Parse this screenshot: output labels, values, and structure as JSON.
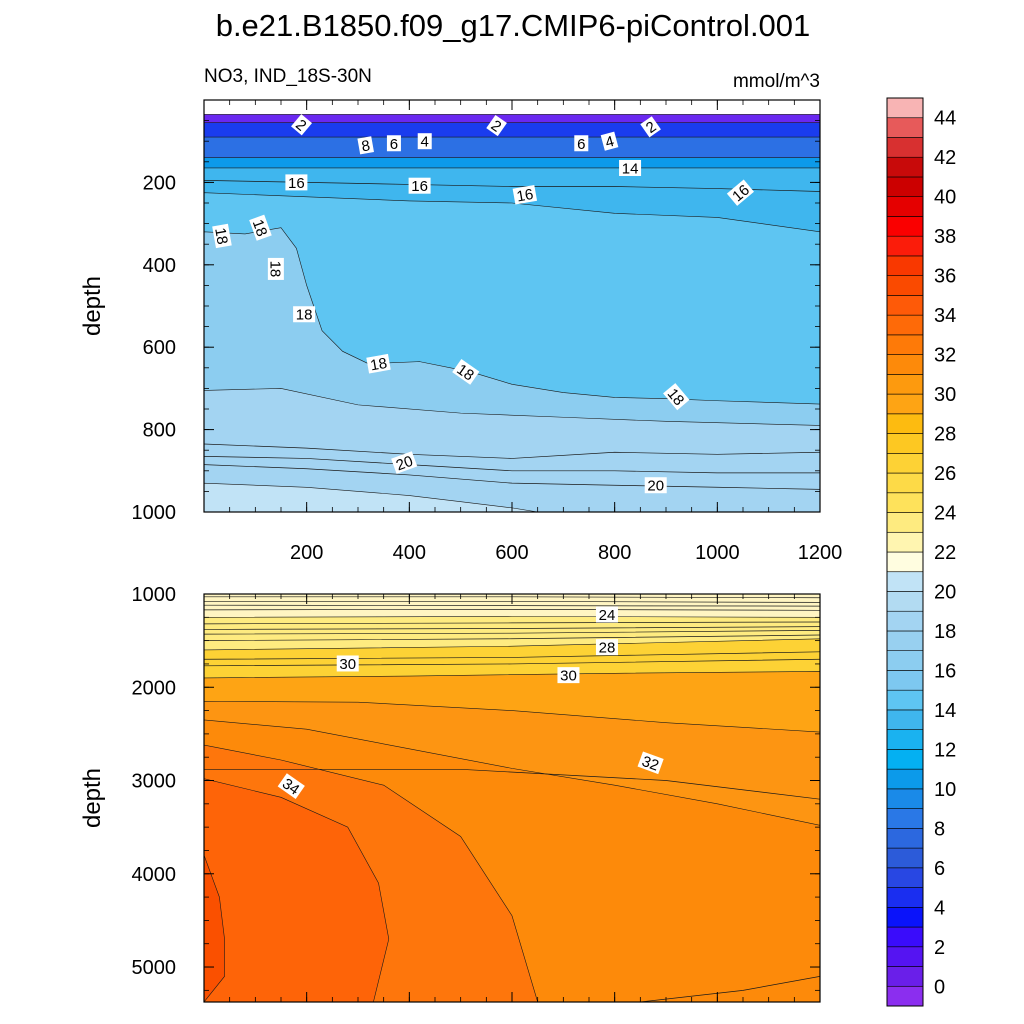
{
  "chart_data": {
    "type": "contour",
    "title": "b.e21.B1850.f09_g17.CMIP6-piControl.001",
    "subtitle_left": "NO3, IND_18S-30N",
    "subtitle_right": "mmol/m^3",
    "xlabel": "",
    "xlim": [
      0,
      1200
    ],
    "x_ticks": [
      200,
      400,
      600,
      800,
      1000,
      1200
    ],
    "panels": [
      {
        "name": "upper",
        "ylabel": "depth",
        "ylim": [
          0,
          1000
        ],
        "y_ticks": [
          200,
          400,
          600,
          800,
          1000
        ],
        "bands": [
          {
            "level": 0,
            "color": "#6a28f0",
            "top": [
              [
                0,
                35
              ],
              [
                1200,
                35
              ]
            ]
          },
          {
            "level": 4,
            "color": "#1a3cee",
            "top": [
              [
                0,
                55
              ],
              [
                1200,
                55
              ]
            ]
          },
          {
            "level": 8,
            "color": "#2c70e4",
            "top": [
              [
                0,
                90
              ],
              [
                1200,
                90
              ]
            ]
          },
          {
            "level": 12,
            "color": "#0c9aea",
            "top": [
              [
                0,
                140
              ],
              [
                1200,
                140
              ]
            ]
          },
          {
            "level": 16,
            "color": "#3fb6ee",
            "top": [
              [
                0,
                165
              ],
              [
                1200,
                165
              ]
            ]
          },
          {
            "level": 17,
            "color": "#5ec5f2",
            "top": [
              [
                0,
                225
              ],
              [
                200,
                235
              ],
              [
                400,
                245
              ],
              [
                600,
                250
              ],
              [
                800,
                275
              ],
              [
                1000,
                285
              ],
              [
                1200,
                320
              ]
            ]
          },
          {
            "level": 18,
            "color": "#8ccdf0",
            "top": [
              [
                0,
                320
              ],
              [
                80,
                325
              ],
              [
                150,
                310
              ],
              [
                180,
                360
              ],
              [
                200,
                450
              ],
              [
                230,
                560
              ],
              [
                270,
                610
              ],
              [
                320,
                640
              ],
              [
                420,
                635
              ],
              [
                520,
                660
              ],
              [
                600,
                690
              ],
              [
                700,
                710
              ],
              [
                800,
                722
              ],
              [
                900,
                725
              ],
              [
                1000,
                730
              ],
              [
                1200,
                738
              ]
            ]
          },
          {
            "level": 19,
            "color": "#a3d4f2",
            "top": [
              [
                0,
                705
              ],
              [
                150,
                700
              ],
              [
                300,
                740
              ],
              [
                500,
                760
              ],
              [
                700,
                770
              ],
              [
                900,
                780
              ],
              [
                1200,
                790
              ]
            ]
          },
          {
            "level": 20,
            "color": "#c1e3f6",
            "top": [
              [
                0,
                930
              ],
              [
                200,
                940
              ],
              [
                400,
                960
              ],
              [
                500,
                975
              ],
              [
                600,
                990
              ],
              [
                650,
                1000
              ],
              [
                1200,
                1000
              ]
            ]
          }
        ],
        "lines": [
          [
            [
              0,
              195
            ],
            [
              200,
              200
            ],
            [
              400,
              205
            ],
            [
              600,
              210
            ],
            [
              800,
              210
            ],
            [
              1000,
              215
            ],
            [
              1200,
              222
            ]
          ],
          [
            [
              0,
              835
            ],
            [
              200,
              845
            ],
            [
              400,
              860
            ],
            [
              600,
              870
            ],
            [
              800,
              855
            ],
            [
              1000,
              860
            ],
            [
              1200,
              855
            ]
          ],
          [
            [
              0,
              865
            ],
            [
              200,
              870
            ],
            [
              400,
              885
            ],
            [
              600,
              900
            ],
            [
              800,
              900
            ],
            [
              1000,
              905
            ],
            [
              1200,
              905
            ]
          ],
          [
            [
              0,
              885
            ],
            [
              200,
              895
            ],
            [
              400,
              910
            ],
            [
              600,
              930
            ],
            [
              800,
              935
            ],
            [
              1000,
              940
            ],
            [
              1200,
              945
            ]
          ]
        ],
        "labels": [
          {
            "text": "2",
            "x": 190,
            "y": 60,
            "rot": 40
          },
          {
            "text": "8",
            "x": 315,
            "y": 110,
            "rot": -10
          },
          {
            "text": "6",
            "x": 370,
            "y": 105,
            "rot": 0
          },
          {
            "text": "4",
            "x": 430,
            "y": 100,
            "rot": 0
          },
          {
            "text": "2",
            "x": 570,
            "y": 62,
            "rot": 35
          },
          {
            "text": "6",
            "x": 735,
            "y": 105,
            "rot": 0
          },
          {
            "text": "4",
            "x": 790,
            "y": 100,
            "rot": -15
          },
          {
            "text": "2",
            "x": 870,
            "y": 65,
            "rot": -35
          },
          {
            "text": "14",
            "x": 830,
            "y": 165,
            "rot": 0
          },
          {
            "text": "16",
            "x": 180,
            "y": 200,
            "rot": 0
          },
          {
            "text": "16",
            "x": 420,
            "y": 208,
            "rot": 0
          },
          {
            "text": "16",
            "x": 625,
            "y": 230,
            "rot": -10
          },
          {
            "text": "16",
            "x": 1045,
            "y": 225,
            "rot": -40
          },
          {
            "text": "18",
            "x": 35,
            "y": 330,
            "rot": 80
          },
          {
            "text": "18",
            "x": 110,
            "y": 310,
            "rot": 70
          },
          {
            "text": "18",
            "x": 140,
            "y": 410,
            "rot": 90
          },
          {
            "text": "18",
            "x": 195,
            "y": 520,
            "rot": 0
          },
          {
            "text": "18",
            "x": 340,
            "y": 640,
            "rot": -10
          },
          {
            "text": "18",
            "x": 510,
            "y": 660,
            "rot": 35
          },
          {
            "text": "18",
            "x": 920,
            "y": 720,
            "rot": 50
          },
          {
            "text": "20",
            "x": 390,
            "y": 880,
            "rot": -20
          },
          {
            "text": "20",
            "x": 880,
            "y": 935,
            "rot": 0
          }
        ]
      },
      {
        "name": "lower",
        "ylabel": "depth",
        "ylim": [
          1000,
          5375
        ],
        "y_ticks": [
          1000,
          2000,
          3000,
          4000,
          5000
        ],
        "bands": [
          {
            "level": 22,
            "color": "#fff5c2",
            "top": [
              [
                0,
                1000
              ],
              [
                1200,
                1000
              ]
            ]
          },
          {
            "level": 24,
            "color": "#feeb80",
            "top": [
              [
                0,
                1250
              ],
              [
                600,
                1240
              ],
              [
                1200,
                1250
              ]
            ]
          },
          {
            "level": 27,
            "color": "#fdd235",
            "top": [
              [
                0,
                1600
              ],
              [
                600,
                1560
              ],
              [
                1200,
                1480
              ]
            ]
          },
          {
            "level": 30,
            "color": "#fea414",
            "top": [
              [
                0,
                1900
              ],
              [
                400,
                1880
              ],
              [
                800,
                1850
              ],
              [
                1200,
                1830
              ]
            ]
          },
          {
            "level": 31,
            "color": "#fd9512",
            "top": [
              [
                0,
                2150
              ],
              [
                300,
                2160
              ],
              [
                600,
                2250
              ],
              [
                900,
                2380
              ],
              [
                1200,
                2480
              ]
            ]
          },
          {
            "level": 32,
            "color": "#fd8a0a",
            "top": [
              [
                0,
                2350
              ],
              [
                200,
                2450
              ],
              [
                400,
                2660
              ],
              [
                600,
                2870
              ],
              [
                800,
                3050
              ],
              [
                1000,
                3250
              ],
              [
                1200,
                3480
              ]
            ]
          },
          {
            "level": 33,
            "color": "#fe760c",
            "top": [
              [
                0,
                2620
              ],
              [
                150,
                2780
              ],
              [
                350,
                3050
              ],
              [
                500,
                3600
              ],
              [
                600,
                4450
              ],
              [
                650,
                5375
              ],
              [
                1200,
                5375
              ]
            ]
          },
          {
            "level": 34,
            "color": "#fe6408",
            "top": [
              [
                0,
                2980
              ],
              [
                150,
                3180
              ],
              [
                280,
                3500
              ],
              [
                340,
                4100
              ],
              [
                360,
                4700
              ],
              [
                330,
                5375
              ],
              [
                1200,
                5375
              ]
            ]
          },
          {
            "level": 35,
            "color": "#fa5000",
            "top": [
              [
                0,
                3800
              ],
              [
                30,
                4250
              ],
              [
                40,
                4700
              ],
              [
                40,
                5100
              ],
              [
                0,
                5375
              ],
              [
                1200,
                5375
              ]
            ]
          }
        ],
        "lines": [
          [
            [
              0,
              1030
            ],
            [
              600,
              1030
            ],
            [
              1200,
              1040
            ]
          ],
          [
            [
              0,
              1080
            ],
            [
              600,
              1080
            ],
            [
              1200,
              1090
            ]
          ],
          [
            [
              0,
              1120
            ],
            [
              600,
              1125
            ],
            [
              1200,
              1130
            ]
          ],
          [
            [
              0,
              1170
            ],
            [
              600,
              1165
            ],
            [
              1200,
              1175
            ]
          ],
          [
            [
              0,
              1320
            ],
            [
              600,
              1310
            ],
            [
              1200,
              1300
            ]
          ],
          [
            [
              0,
              1380
            ],
            [
              600,
              1370
            ],
            [
              1200,
              1350
            ]
          ],
          [
            [
              0,
              1430
            ],
            [
              600,
              1420
            ],
            [
              1200,
              1390
            ]
          ],
          [
            [
              0,
              1500
            ],
            [
              600,
              1480
            ],
            [
              1200,
              1440
            ]
          ],
          [
            [
              0,
              1700
            ],
            [
              600,
              1680
            ],
            [
              1200,
              1620
            ]
          ],
          [
            [
              0,
              1770
            ],
            [
              600,
              1750
            ],
            [
              1200,
              1700
            ]
          ],
          [
            [
              0,
              2880
            ],
            [
              500,
              2880
            ],
            [
              900,
              3000
            ],
            [
              1200,
              3200
            ]
          ],
          [
            [
              850,
              5375
            ],
            [
              1050,
              5250
            ],
            [
              1200,
              5100
            ]
          ]
        ],
        "labels": [
          {
            "text": "24",
            "x": 785,
            "y": 1220,
            "rot": 0
          },
          {
            "text": "28",
            "x": 785,
            "y": 1570,
            "rot": 0
          },
          {
            "text": "30",
            "x": 280,
            "y": 1745,
            "rot": 0
          },
          {
            "text": "30",
            "x": 710,
            "y": 1870,
            "rot": 0
          },
          {
            "text": "32",
            "x": 870,
            "y": 2810,
            "rot": 20
          },
          {
            "text": "34",
            "x": 170,
            "y": 3060,
            "rot": 35
          }
        ]
      }
    ],
    "colorbar": {
      "labels": [
        "0",
        "2",
        "4",
        "6",
        "8",
        "10",
        "12",
        "14",
        "16",
        "18",
        "20",
        "22",
        "24",
        "26",
        "28",
        "30",
        "32",
        "34",
        "36",
        "38",
        "40",
        "42",
        "44"
      ],
      "colors": [
        "#8b2eef",
        "#6a1fe9",
        "#5514f2",
        "#3a0cfb",
        "#0a13fa",
        "#1a2ef0",
        "#2847e3",
        "#2c5bd9",
        "#2c68df",
        "#2a78e6",
        "#1a8ae8",
        "#0c9aea",
        "#04b0f2",
        "#1ab2f0",
        "#3fb6ee",
        "#5ec5f2",
        "#7dc8f0",
        "#8ccdf0",
        "#98d0f0",
        "#a3d4f2",
        "#b2dbf2",
        "#c1e3f6",
        "#fffde0",
        "#fff5b0",
        "#feeb80",
        "#fee25b",
        "#fdda47",
        "#fdd235",
        "#fdc822",
        "#fdbb10",
        "#fea414",
        "#fd9a0e",
        "#fd8a0a",
        "#fe7a08",
        "#fe6a08",
        "#fe5a08",
        "#fa4a00",
        "#f93800",
        "#fb1c0a",
        "#fa0000",
        "#e50000",
        "#cc0000",
        "#c80a0a",
        "#d83030",
        "#e75a5a",
        "#f8b4b4"
      ]
    }
  }
}
